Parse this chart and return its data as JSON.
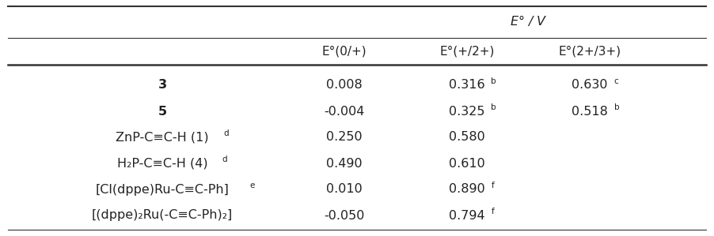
{
  "header_top": "$E$° / V",
  "col_headers": [
    "E°(0/+)",
    "E°(+/2+)",
    "E°(2+/3+)"
  ],
  "rows": [
    {
      "compound": "3",
      "bold": true,
      "compound_sup": "",
      "v0": "0.008",
      "v1": "0.316",
      "v1_sup": "b",
      "v2": "0.630",
      "v2_sup": "c"
    },
    {
      "compound": "5",
      "bold": true,
      "compound_sup": "",
      "v0": "-0.004",
      "v1": "0.325",
      "v1_sup": "b",
      "v2": "0.518",
      "v2_sup": "b"
    },
    {
      "compound": "ZnP-C≡C-H (1)",
      "bold": false,
      "compound_sup": "d",
      "v0": "0.250",
      "v1": "0.580",
      "v1_sup": "",
      "v2": "",
      "v2_sup": ""
    },
    {
      "compound": "H₂P-C≡C-H (4)",
      "bold": false,
      "compound_sup": "d",
      "v0": "0.490",
      "v1": "0.610",
      "v1_sup": "",
      "v2": "",
      "v2_sup": ""
    },
    {
      "compound": "[Cl(dppe)Ru-C≡C-Ph]",
      "bold": false,
      "compound_sup": "e",
      "v0": "0.010",
      "v1": "0.890",
      "v1_sup": "f",
      "v2": "",
      "v2_sup": ""
    },
    {
      "compound": "[(dppe)₂Ru(-C≡C-Ph)₂]",
      "bold": false,
      "compound_sup": "",
      "v0": "-0.050",
      "v1": "0.794",
      "v1_sup": "f",
      "v2": "",
      "v2_sup": ""
    }
  ],
  "bg_color": "#ffffff",
  "text_color": "#222222",
  "font_size": 11.5,
  "sup_font_size": 7.5,
  "line_color": "#333333"
}
